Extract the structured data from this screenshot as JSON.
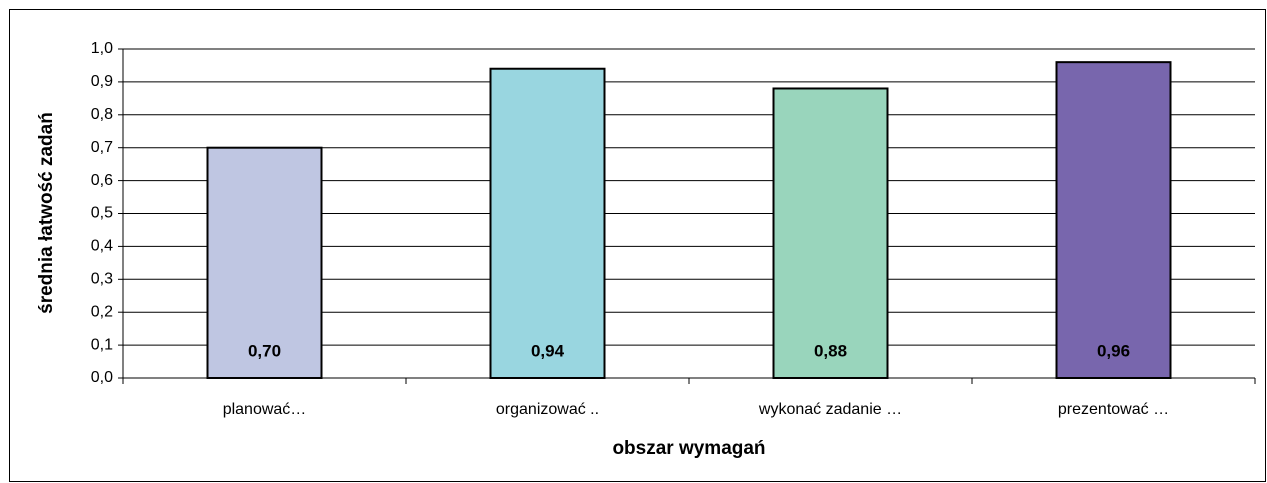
{
  "chart_data": {
    "type": "bar",
    "x_label": "obszar wymagań",
    "y_label": "średnia łatwość zadań",
    "categories": [
      "planować…",
      "organizować ..",
      "wykonać zadanie …",
      "prezentować …"
    ],
    "values": [
      0.7,
      0.94,
      0.88,
      0.96
    ],
    "value_labels": [
      "0,70",
      "0,94",
      "0,88",
      "0,96"
    ],
    "colors": [
      "#bfc6e2",
      "#99d6e0",
      "#99d5bc",
      "#7866ad"
    ],
    "ylim": [
      0,
      1
    ],
    "yticks": [
      {
        "value": 0,
        "label": "0,0"
      },
      {
        "value": 0.1,
        "label": "0,1"
      },
      {
        "value": 0.2,
        "label": "0,2"
      },
      {
        "value": 0.3,
        "label": "0,3"
      },
      {
        "value": 0.4,
        "label": "0,4"
      },
      {
        "value": 0.5,
        "label": "0,5"
      },
      {
        "value": 0.6,
        "label": "0,6"
      },
      {
        "value": 0.7,
        "label": "0,7"
      },
      {
        "value": 0.8,
        "label": "0,8"
      },
      {
        "value": 0.9,
        "label": "0,9"
      },
      {
        "value": 1,
        "label": "1,0"
      }
    ],
    "grid": true
  }
}
